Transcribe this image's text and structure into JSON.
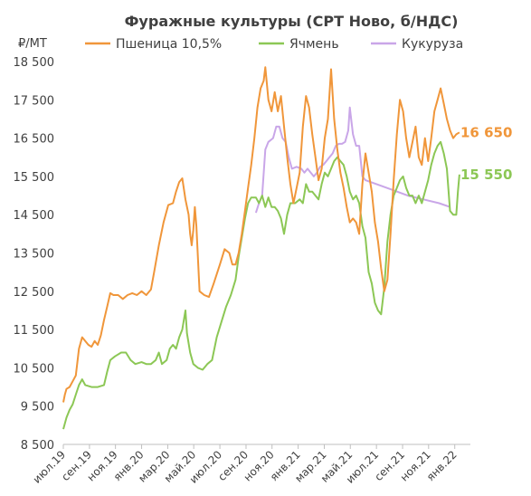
{
  "chart_data": {
    "type": "line",
    "title": "Фуражные культуры (СРТ Ново, б/НДС)",
    "unit_label": "₽/МТ",
    "ylim": [
      8500,
      18500
    ],
    "yticks": [
      8500,
      9500,
      10500,
      11500,
      12500,
      13500,
      14500,
      15500,
      16500,
      17500,
      18500
    ],
    "ytick_labels": [
      "8 500",
      "9 500",
      "10 500",
      "11 500",
      "12 500",
      "13 500",
      "14 500",
      "15 500",
      "16 500",
      "17 500",
      "18 500"
    ],
    "xlim": [
      2019.5,
      2022.1
    ],
    "xticks": [
      {
        "x": 2019.5,
        "label": "июл.19"
      },
      {
        "x": 2019.667,
        "label": "сен.19"
      },
      {
        "x": 2019.833,
        "label": "ноя.19"
      },
      {
        "x": 2020.0,
        "label": "янв.20"
      },
      {
        "x": 2020.167,
        "label": "мар.20"
      },
      {
        "x": 2020.333,
        "label": "май.20"
      },
      {
        "x": 2020.5,
        "label": "июл.20"
      },
      {
        "x": 2020.667,
        "label": "сен.20"
      },
      {
        "x": 2020.833,
        "label": "ноя.20"
      },
      {
        "x": 2021.0,
        "label": "янв.21"
      },
      {
        "x": 2021.167,
        "label": "мар.21"
      },
      {
        "x": 2021.333,
        "label": "май.21"
      },
      {
        "x": 2021.5,
        "label": "июл.21"
      },
      {
        "x": 2021.667,
        "label": "сен.21"
      },
      {
        "x": 2021.833,
        "label": "ноя.21"
      },
      {
        "x": 2022.0,
        "label": "янв.22"
      }
    ],
    "legend_position": "top",
    "grid": false,
    "series": [
      {
        "name": "Пшеница 10,5%",
        "color": "#f0963a",
        "end_label": "16 650",
        "points": [
          [
            2019.5,
            9600
          ],
          [
            2019.51,
            9800
          ],
          [
            2019.52,
            9950
          ],
          [
            2019.54,
            10000
          ],
          [
            2019.56,
            10150
          ],
          [
            2019.58,
            10300
          ],
          [
            2019.6,
            11000
          ],
          [
            2019.62,
            11300
          ],
          [
            2019.64,
            11200
          ],
          [
            2019.66,
            11100
          ],
          [
            2019.68,
            11050
          ],
          [
            2019.7,
            11200
          ],
          [
            2019.72,
            11100
          ],
          [
            2019.74,
            11350
          ],
          [
            2019.76,
            11750
          ],
          [
            2019.78,
            12100
          ],
          [
            2019.8,
            12450
          ],
          [
            2019.82,
            12400
          ],
          [
            2019.85,
            12400
          ],
          [
            2019.88,
            12300
          ],
          [
            2019.91,
            12400
          ],
          [
            2019.94,
            12450
          ],
          [
            2019.97,
            12400
          ],
          [
            2020.0,
            12500
          ],
          [
            2020.03,
            12400
          ],
          [
            2020.06,
            12550
          ],
          [
            2020.08,
            13000
          ],
          [
            2020.11,
            13700
          ],
          [
            2020.14,
            14300
          ],
          [
            2020.17,
            14750
          ],
          [
            2020.2,
            14800
          ],
          [
            2020.22,
            15100
          ],
          [
            2020.24,
            15350
          ],
          [
            2020.26,
            15450
          ],
          [
            2020.28,
            14900
          ],
          [
            2020.3,
            14500
          ],
          [
            2020.31,
            14000
          ],
          [
            2020.32,
            13700
          ],
          [
            2020.33,
            14100
          ],
          [
            2020.34,
            14700
          ],
          [
            2020.35,
            14200
          ],
          [
            2020.37,
            12500
          ],
          [
            2020.4,
            12400
          ],
          [
            2020.43,
            12350
          ],
          [
            2020.46,
            12700
          ],
          [
            2020.5,
            13200
          ],
          [
            2020.53,
            13600
          ],
          [
            2020.56,
            13500
          ],
          [
            2020.58,
            13200
          ],
          [
            2020.6,
            13200
          ],
          [
            2020.62,
            13500
          ],
          [
            2020.64,
            14000
          ],
          [
            2020.66,
            14600
          ],
          [
            2020.68,
            15200
          ],
          [
            2020.7,
            15800
          ],
          [
            2020.72,
            16500
          ],
          [
            2020.74,
            17300
          ],
          [
            2020.76,
            17800
          ],
          [
            2020.78,
            18000
          ],
          [
            2020.79,
            18350
          ],
          [
            2020.81,
            17500
          ],
          [
            2020.83,
            17200
          ],
          [
            2020.85,
            17700
          ],
          [
            2020.87,
            17200
          ],
          [
            2020.89,
            17600
          ],
          [
            2020.91,
            16800
          ],
          [
            2020.93,
            16000
          ],
          [
            2020.95,
            15300
          ],
          [
            2020.97,
            14800
          ],
          [
            2020.99,
            15200
          ],
          [
            2021.01,
            15600
          ],
          [
            2021.03,
            16800
          ],
          [
            2021.05,
            17600
          ],
          [
            2021.07,
            17300
          ],
          [
            2021.09,
            16600
          ],
          [
            2021.11,
            16000
          ],
          [
            2021.13,
            15400
          ],
          [
            2021.15,
            15700
          ],
          [
            2021.17,
            16500
          ],
          [
            2021.19,
            17000
          ],
          [
            2021.21,
            18300
          ],
          [
            2021.23,
            17000
          ],
          [
            2021.25,
            16200
          ],
          [
            2021.27,
            15600
          ],
          [
            2021.29,
            15200
          ],
          [
            2021.31,
            14700
          ],
          [
            2021.33,
            14300
          ],
          [
            2021.35,
            14400
          ],
          [
            2021.37,
            14300
          ],
          [
            2021.39,
            14000
          ],
          [
            2021.41,
            15300
          ],
          [
            2021.43,
            16100
          ],
          [
            2021.45,
            15600
          ],
          [
            2021.47,
            15100
          ],
          [
            2021.49,
            14300
          ],
          [
            2021.51,
            13800
          ],
          [
            2021.53,
            13100
          ],
          [
            2021.55,
            12500
          ],
          [
            2021.57,
            12800
          ],
          [
            2021.59,
            14000
          ],
          [
            2021.61,
            15400
          ],
          [
            2021.63,
            16600
          ],
          [
            2021.65,
            17500
          ],
          [
            2021.67,
            17200
          ],
          [
            2021.69,
            16500
          ],
          [
            2021.71,
            16000
          ],
          [
            2021.73,
            16400
          ],
          [
            2021.75,
            16800
          ],
          [
            2021.77,
            16000
          ],
          [
            2021.79,
            15800
          ],
          [
            2021.81,
            16500
          ],
          [
            2021.83,
            15900
          ],
          [
            2021.85,
            16500
          ],
          [
            2021.87,
            17200
          ],
          [
            2021.89,
            17500
          ],
          [
            2021.91,
            17800
          ],
          [
            2021.93,
            17400
          ],
          [
            2021.95,
            17000
          ],
          [
            2021.97,
            16700
          ],
          [
            2021.99,
            16500
          ],
          [
            2022.01,
            16600
          ],
          [
            2022.03,
            16650
          ]
        ]
      },
      {
        "name": "Ячмень",
        "color": "#8cc755",
        "end_label": "15 550",
        "points": [
          [
            2019.5,
            8900
          ],
          [
            2019.52,
            9200
          ],
          [
            2019.54,
            9400
          ],
          [
            2019.56,
            9550
          ],
          [
            2019.58,
            9800
          ],
          [
            2019.6,
            10050
          ],
          [
            2019.62,
            10200
          ],
          [
            2019.64,
            10050
          ],
          [
            2019.68,
            10000
          ],
          [
            2019.72,
            10000
          ],
          [
            2019.76,
            10050
          ],
          [
            2019.78,
            10400
          ],
          [
            2019.8,
            10700
          ],
          [
            2019.83,
            10800
          ],
          [
            2019.87,
            10900
          ],
          [
            2019.9,
            10900
          ],
          [
            2019.93,
            10700
          ],
          [
            2019.96,
            10600
          ],
          [
            2020.0,
            10650
          ],
          [
            2020.03,
            10600
          ],
          [
            2020.06,
            10600
          ],
          [
            2020.09,
            10700
          ],
          [
            2020.11,
            10900
          ],
          [
            2020.13,
            10600
          ],
          [
            2020.16,
            10700
          ],
          [
            2020.18,
            11000
          ],
          [
            2020.2,
            11100
          ],
          [
            2020.22,
            11000
          ],
          [
            2020.24,
            11300
          ],
          [
            2020.26,
            11500
          ],
          [
            2020.28,
            12000
          ],
          [
            2020.29,
            11400
          ],
          [
            2020.31,
            10900
          ],
          [
            2020.33,
            10600
          ],
          [
            2020.36,
            10500
          ],
          [
            2020.39,
            10450
          ],
          [
            2020.42,
            10600
          ],
          [
            2020.45,
            10700
          ],
          [
            2020.48,
            11300
          ],
          [
            2020.51,
            11700
          ],
          [
            2020.54,
            12100
          ],
          [
            2020.57,
            12400
          ],
          [
            2020.6,
            12800
          ],
          [
            2020.62,
            13400
          ],
          [
            2020.64,
            13900
          ],
          [
            2020.66,
            14400
          ],
          [
            2020.68,
            14800
          ],
          [
            2020.7,
            14950
          ],
          [
            2020.73,
            14950
          ],
          [
            2020.75,
            14800
          ],
          [
            2020.77,
            15000
          ],
          [
            2020.79,
            14700
          ],
          [
            2020.81,
            14950
          ],
          [
            2020.83,
            14700
          ],
          [
            2020.85,
            14700
          ],
          [
            2020.87,
            14600
          ],
          [
            2020.89,
            14400
          ],
          [
            2020.91,
            14000
          ],
          [
            2020.93,
            14500
          ],
          [
            2020.95,
            14800
          ],
          [
            2020.98,
            14800
          ],
          [
            2021.01,
            14900
          ],
          [
            2021.03,
            14800
          ],
          [
            2021.05,
            15300
          ],
          [
            2021.07,
            15100
          ],
          [
            2021.09,
            15100
          ],
          [
            2021.11,
            15000
          ],
          [
            2021.13,
            14900
          ],
          [
            2021.15,
            15300
          ],
          [
            2021.17,
            15600
          ],
          [
            2021.19,
            15500
          ],
          [
            2021.21,
            15700
          ],
          [
            2021.23,
            15900
          ],
          [
            2021.25,
            16000
          ],
          [
            2021.27,
            15900
          ],
          [
            2021.29,
            15800
          ],
          [
            2021.31,
            15500
          ],
          [
            2021.33,
            15100
          ],
          [
            2021.35,
            14900
          ],
          [
            2021.37,
            15000
          ],
          [
            2021.39,
            14800
          ],
          [
            2021.41,
            14200
          ],
          [
            2021.43,
            13900
          ],
          [
            2021.45,
            13000
          ],
          [
            2021.47,
            12700
          ],
          [
            2021.49,
            12200
          ],
          [
            2021.51,
            12000
          ],
          [
            2021.53,
            11900
          ],
          [
            2021.55,
            12600
          ],
          [
            2021.57,
            13800
          ],
          [
            2021.59,
            14500
          ],
          [
            2021.61,
            15000
          ],
          [
            2021.63,
            15200
          ],
          [
            2021.65,
            15400
          ],
          [
            2021.67,
            15500
          ],
          [
            2021.69,
            15200
          ],
          [
            2021.71,
            15000
          ],
          [
            2021.73,
            15000
          ],
          [
            2021.75,
            14800
          ],
          [
            2021.77,
            15000
          ],
          [
            2021.79,
            14800
          ],
          [
            2021.81,
            15100
          ],
          [
            2021.83,
            15400
          ],
          [
            2021.85,
            15800
          ],
          [
            2021.87,
            16100
          ],
          [
            2021.89,
            16300
          ],
          [
            2021.91,
            16400
          ],
          [
            2021.93,
            16100
          ],
          [
            2021.95,
            15700
          ],
          [
            2021.97,
            14600
          ],
          [
            2021.99,
            14500
          ],
          [
            2022.01,
            14500
          ],
          [
            2022.02,
            15100
          ],
          [
            2022.03,
            15550
          ]
        ]
      },
      {
        "name": "Кукуруза",
        "color": "#c9a6e8",
        "end_label": "",
        "points": [
          [
            2020.73,
            14550
          ],
          [
            2020.75,
            14800
          ],
          [
            2020.77,
            15000
          ],
          [
            2020.79,
            16200
          ],
          [
            2020.81,
            16400
          ],
          [
            2020.84,
            16500
          ],
          [
            2020.86,
            16800
          ],
          [
            2020.88,
            16800
          ],
          [
            2020.9,
            16500
          ],
          [
            2020.92,
            16400
          ],
          [
            2020.94,
            16000
          ],
          [
            2020.96,
            15700
          ],
          [
            2020.99,
            15750
          ],
          [
            2021.02,
            15700
          ],
          [
            2021.04,
            15600
          ],
          [
            2021.06,
            15700
          ],
          [
            2021.08,
            15600
          ],
          [
            2021.1,
            15500
          ],
          [
            2021.12,
            15600
          ],
          [
            2021.14,
            15750
          ],
          [
            2021.16,
            15800
          ],
          [
            2021.18,
            15900
          ],
          [
            2021.2,
            16000
          ],
          [
            2021.22,
            16100
          ],
          [
            2021.24,
            16300
          ],
          [
            2021.26,
            16350
          ],
          [
            2021.28,
            16350
          ],
          [
            2021.3,
            16400
          ],
          [
            2021.32,
            16700
          ],
          [
            2021.33,
            17300
          ],
          [
            2021.35,
            16600
          ],
          [
            2021.37,
            16300
          ],
          [
            2021.39,
            16300
          ],
          [
            2021.41,
            15500
          ],
          [
            2021.43,
            15400
          ],
          [
            2021.5,
            15300
          ],
          [
            2021.6,
            15150
          ],
          [
            2021.7,
            15000
          ],
          [
            2021.8,
            14900
          ],
          [
            2021.9,
            14800
          ],
          [
            2021.97,
            14700
          ]
        ]
      }
    ]
  }
}
